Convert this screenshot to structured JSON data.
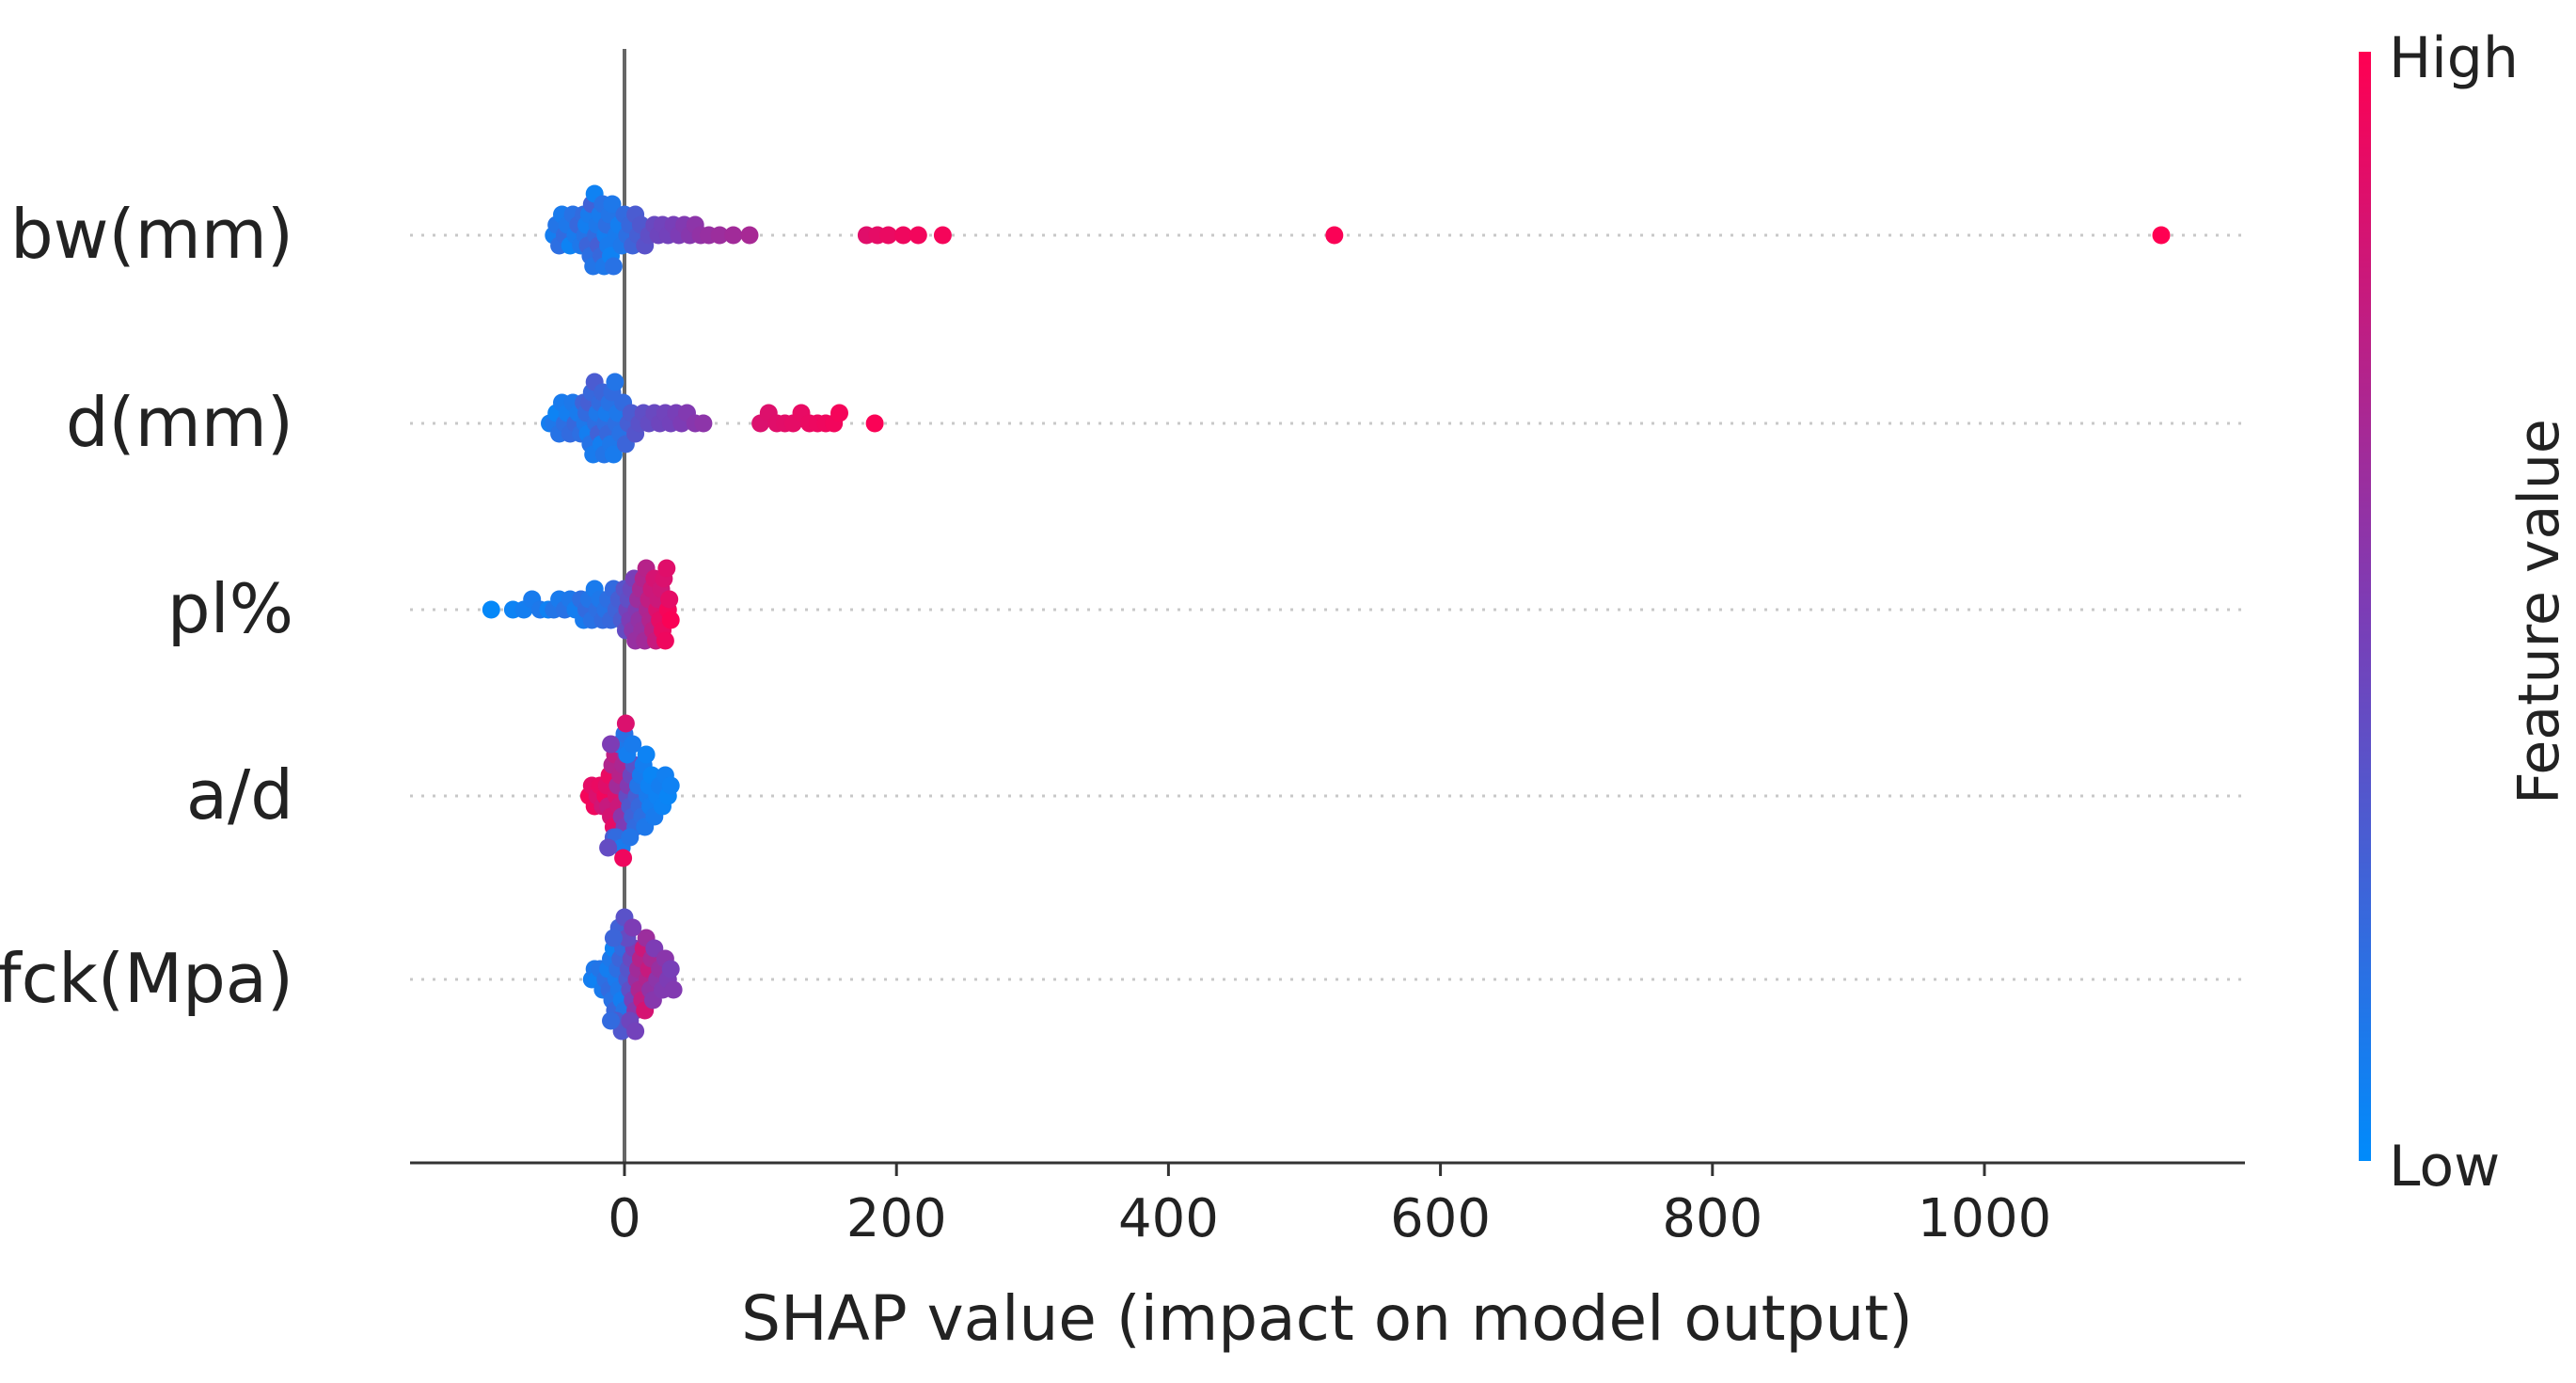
{
  "chart_data": {
    "type": "scatter",
    "subtype": "shap-beeswarm",
    "title": "",
    "xlabel": "SHAP value (impact on model output)",
    "ylabel": "",
    "xlim": [
      -160,
      1200
    ],
    "xticks": [
      0,
      200,
      400,
      600,
      800,
      1000
    ],
    "xtick_labels": [
      "0",
      "200",
      "400",
      "600",
      "800",
      "1000"
    ],
    "zero_line": 0,
    "colorbar": {
      "label": "Feature value",
      "high_label": "High",
      "low_label": "Low",
      "low_color": "#008bfb",
      "mid_color": "#7d3cb5",
      "high_color": "#ff0052"
    },
    "features": [
      {
        "name": "bw(mm)",
        "points": [
          [
            -52,
            0.08
          ],
          [
            -50,
            0.14
          ],
          [
            -48,
            0.18
          ],
          [
            -46,
            0.1
          ],
          [
            -44,
            0.2
          ],
          [
            -42,
            0.12
          ],
          [
            -40,
            0.05
          ],
          [
            -38,
            0.16
          ],
          [
            -36,
            0.1
          ],
          [
            -34,
            0.22
          ],
          [
            -32,
            0.12
          ],
          [
            -30,
            0.2
          ],
          [
            -29,
            0.15
          ],
          [
            -28,
            0.08
          ],
          [
            -27,
            0.24
          ],
          [
            -26,
            0.1
          ],
          [
            -25,
            0.18
          ],
          [
            -24,
            0.26
          ],
          [
            -23,
            0.14
          ],
          [
            -22,
            0.06
          ],
          [
            -21,
            0.2
          ],
          [
            -20,
            0.12
          ],
          [
            -19,
            0.28
          ],
          [
            -18,
            0.1
          ],
          [
            -17,
            0.22
          ],
          [
            -16,
            0.16
          ],
          [
            -15,
            0.12
          ],
          [
            -14,
            0.08
          ],
          [
            -13,
            0.18
          ],
          [
            -12,
            0.1
          ],
          [
            -11,
            0.14
          ],
          [
            -10,
            0.06
          ],
          [
            -9,
            0.12
          ],
          [
            -8,
            0.16
          ],
          [
            -6,
            0.1
          ],
          [
            -4,
            0.08
          ],
          [
            -2,
            0.12
          ],
          [
            0,
            0.2
          ],
          [
            2,
            0.18
          ],
          [
            4,
            0.22
          ],
          [
            6,
            0.25
          ],
          [
            8,
            0.3
          ],
          [
            10,
            0.28
          ],
          [
            12,
            0.32
          ],
          [
            15,
            0.36
          ],
          [
            18,
            0.38
          ],
          [
            22,
            0.42
          ],
          [
            25,
            0.44
          ],
          [
            28,
            0.45
          ],
          [
            32,
            0.46
          ],
          [
            36,
            0.48
          ],
          [
            40,
            0.5
          ],
          [
            44,
            0.52
          ],
          [
            48,
            0.54
          ],
          [
            52,
            0.56
          ],
          [
            56,
            0.58
          ],
          [
            62,
            0.6
          ],
          [
            70,
            0.62
          ],
          [
            80,
            0.64
          ],
          [
            92,
            0.66
          ],
          [
            178,
            0.88
          ],
          [
            186,
            0.9
          ],
          [
            194,
            0.92
          ],
          [
            205,
            0.94
          ],
          [
            216,
            0.95
          ],
          [
            234,
            0.96
          ],
          [
            522,
            0.98
          ],
          [
            1130,
            1.0
          ]
        ]
      },
      {
        "name": "d(mm)",
        "points": [
          [
            -55,
            0.08
          ],
          [
            -52,
            0.12
          ],
          [
            -50,
            0.05
          ],
          [
            -48,
            0.15
          ],
          [
            -46,
            0.1
          ],
          [
            -44,
            0.18
          ],
          [
            -42,
            0.08
          ],
          [
            -40,
            0.2
          ],
          [
            -38,
            0.12
          ],
          [
            -36,
            0.22
          ],
          [
            -34,
            0.1
          ],
          [
            -32,
            0.18
          ],
          [
            -30,
            0.25
          ],
          [
            -29,
            0.12
          ],
          [
            -28,
            0.2
          ],
          [
            -27,
            0.08
          ],
          [
            -26,
            0.28
          ],
          [
            -25,
            0.15
          ],
          [
            -24,
            0.22
          ],
          [
            -23,
            0.1
          ],
          [
            -22,
            0.3
          ],
          [
            -21,
            0.18
          ],
          [
            -20,
            0.12
          ],
          [
            -19,
            0.26
          ],
          [
            -18,
            0.2
          ],
          [
            -17,
            0.08
          ],
          [
            -16,
            0.24
          ],
          [
            -15,
            0.14
          ],
          [
            -14,
            0.18
          ],
          [
            -13,
            0.1
          ],
          [
            -12,
            0.22
          ],
          [
            -11,
            0.16
          ],
          [
            -10,
            0.12
          ],
          [
            -9,
            0.2
          ],
          [
            -8,
            0.1
          ],
          [
            -7,
            0.14
          ],
          [
            -6,
            0.18
          ],
          [
            -5,
            0.12
          ],
          [
            -3,
            0.16
          ],
          [
            -1,
            0.2
          ],
          [
            1,
            0.24
          ],
          [
            3,
            0.28
          ],
          [
            5,
            0.3
          ],
          [
            8,
            0.34
          ],
          [
            11,
            0.36
          ],
          [
            14,
            0.38
          ],
          [
            18,
            0.4
          ],
          [
            22,
            0.42
          ],
          [
            26,
            0.44
          ],
          [
            30,
            0.45
          ],
          [
            34,
            0.46
          ],
          [
            38,
            0.48
          ],
          [
            42,
            0.5
          ],
          [
            46,
            0.52
          ],
          [
            52,
            0.54
          ],
          [
            58,
            0.56
          ],
          [
            100,
            0.86
          ],
          [
            106,
            0.87
          ],
          [
            112,
            0.88
          ],
          [
            118,
            0.89
          ],
          [
            124,
            0.9
          ],
          [
            130,
            0.91
          ],
          [
            136,
            0.92
          ],
          [
            142,
            0.93
          ],
          [
            148,
            0.94
          ],
          [
            154,
            0.95
          ],
          [
            158,
            0.96
          ],
          [
            184,
            0.98
          ]
        ]
      },
      {
        "name": "pl%",
        "points": [
          [
            -98,
            0.02
          ],
          [
            -82,
            0.05
          ],
          [
            -74,
            0.08
          ],
          [
            -68,
            0.1
          ],
          [
            -62,
            0.12
          ],
          [
            -56,
            0.06
          ],
          [
            -52,
            0.14
          ],
          [
            -48,
            0.1
          ],
          [
            -44,
            0.16
          ],
          [
            -40,
            0.12
          ],
          [
            -36,
            0.08
          ],
          [
            -32,
            0.18
          ],
          [
            -30,
            0.1
          ],
          [
            -28,
            0.2
          ],
          [
            -26,
            0.14
          ],
          [
            -24,
            0.16
          ],
          [
            -22,
            0.1
          ],
          [
            -20,
            0.18
          ],
          [
            -18,
            0.12
          ],
          [
            -16,
            0.2
          ],
          [
            -14,
            0.15
          ],
          [
            -12,
            0.18
          ],
          [
            -10,
            0.22
          ],
          [
            -8,
            0.2
          ],
          [
            -6,
            0.25
          ],
          [
            -4,
            0.28
          ],
          [
            -2,
            0.3
          ],
          [
            0,
            0.35
          ],
          [
            1,
            0.4
          ],
          [
            2,
            0.45
          ],
          [
            3,
            0.38
          ],
          [
            4,
            0.5
          ],
          [
            5,
            0.42
          ],
          [
            6,
            0.55
          ],
          [
            7,
            0.48
          ],
          [
            8,
            0.6
          ],
          [
            9,
            0.52
          ],
          [
            10,
            0.62
          ],
          [
            11,
            0.58
          ],
          [
            12,
            0.66
          ],
          [
            13,
            0.6
          ],
          [
            14,
            0.7
          ],
          [
            15,
            0.64
          ],
          [
            16,
            0.72
          ],
          [
            17,
            0.68
          ],
          [
            18,
            0.76
          ],
          [
            19,
            0.7
          ],
          [
            20,
            0.8
          ],
          [
            21,
            0.74
          ],
          [
            22,
            0.84
          ],
          [
            23,
            0.78
          ],
          [
            24,
            0.86
          ],
          [
            25,
            0.8
          ],
          [
            26,
            0.9
          ],
          [
            27,
            0.82
          ],
          [
            28,
            0.92
          ],
          [
            29,
            0.86
          ],
          [
            30,
            0.94
          ],
          [
            31,
            0.88
          ],
          [
            32,
            0.96
          ],
          [
            33,
            0.9
          ],
          [
            34,
            0.98
          ]
        ]
      },
      {
        "name": "a/d",
        "points": [
          [
            -26,
            0.96
          ],
          [
            -24,
            0.9
          ],
          [
            -22,
            0.94
          ],
          [
            -20,
            0.86
          ],
          [
            -18,
            0.92
          ],
          [
            -16,
            0.82
          ],
          [
            -14,
            0.95
          ],
          [
            -13,
            0.88
          ],
          [
            -12,
            0.78
          ],
          [
            -11,
            0.92
          ],
          [
            -10,
            0.84
          ],
          [
            -9,
            0.7
          ],
          [
            -8,
            0.9
          ],
          [
            -7,
            0.76
          ],
          [
            -6,
            0.86
          ],
          [
            -5,
            0.64
          ],
          [
            -4,
            0.8
          ],
          [
            -3,
            0.72
          ],
          [
            -2,
            0.56
          ],
          [
            -1,
            0.68
          ],
          [
            0,
            0.5
          ],
          [
            1,
            0.62
          ],
          [
            2,
            0.4
          ],
          [
            3,
            0.52
          ],
          [
            4,
            0.32
          ],
          [
            5,
            0.44
          ],
          [
            6,
            0.26
          ],
          [
            7,
            0.36
          ],
          [
            8,
            0.2
          ],
          [
            9,
            0.28
          ],
          [
            10,
            0.14
          ],
          [
            11,
            0.22
          ],
          [
            12,
            0.1
          ],
          [
            13,
            0.18
          ],
          [
            14,
            0.08
          ],
          [
            15,
            0.12
          ],
          [
            16,
            0.05
          ],
          [
            17,
            0.1
          ],
          [
            18,
            0.06
          ],
          [
            19,
            0.08
          ],
          [
            20,
            0.04
          ],
          [
            22,
            0.1
          ],
          [
            24,
            0.06
          ],
          [
            26,
            0.08
          ],
          [
            28,
            0.05
          ],
          [
            30,
            0.07
          ],
          [
            32,
            0.04
          ],
          [
            34,
            0.06
          ],
          [
            -8,
            0.3
          ],
          [
            -6,
            0.2
          ],
          [
            -4,
            0.12
          ],
          [
            -2,
            0.1
          ],
          [
            0,
            0.16
          ],
          [
            2,
            0.08
          ],
          [
            4,
            0.14
          ],
          [
            6,
            0.1
          ],
          [
            -10,
            0.5
          ],
          [
            -12,
            0.4
          ],
          [
            -1,
            0.94
          ],
          [
            1,
            0.86
          ]
        ]
      },
      {
        "name": "fck(Mpa)",
        "points": [
          [
            -24,
            0.08
          ],
          [
            -22,
            0.12
          ],
          [
            -20,
            0.06
          ],
          [
            -18,
            0.14
          ],
          [
            -16,
            0.1
          ],
          [
            -14,
            0.18
          ],
          [
            -12,
            0.08
          ],
          [
            -11,
            0.2
          ],
          [
            -10,
            0.12
          ],
          [
            -9,
            0.16
          ],
          [
            -8,
            0.06
          ],
          [
            -7,
            0.22
          ],
          [
            -6,
            0.1
          ],
          [
            -5,
            0.18
          ],
          [
            -4,
            0.12
          ],
          [
            -3,
            0.24
          ],
          [
            -2,
            0.08
          ],
          [
            -1,
            0.2
          ],
          [
            0,
            0.14
          ],
          [
            1,
            0.28
          ],
          [
            2,
            0.3
          ],
          [
            3,
            0.34
          ],
          [
            4,
            0.38
          ],
          [
            5,
            0.42
          ],
          [
            6,
            0.46
          ],
          [
            7,
            0.5
          ],
          [
            8,
            0.55
          ],
          [
            9,
            0.6
          ],
          [
            10,
            0.64
          ],
          [
            11,
            0.68
          ],
          [
            12,
            0.72
          ],
          [
            13,
            0.76
          ],
          [
            14,
            0.8
          ],
          [
            15,
            0.84
          ],
          [
            16,
            0.62
          ],
          [
            17,
            0.7
          ],
          [
            18,
            0.78
          ],
          [
            19,
            0.58
          ],
          [
            20,
            0.66
          ],
          [
            21,
            0.54
          ],
          [
            22,
            0.5
          ],
          [
            24,
            0.56
          ],
          [
            26,
            0.6
          ],
          [
            28,
            0.52
          ],
          [
            30,
            0.55
          ],
          [
            32,
            0.5
          ],
          [
            34,
            0.48
          ],
          [
            36,
            0.52
          ],
          [
            -6,
            0.3
          ],
          [
            -4,
            0.26
          ],
          [
            -2,
            0.32
          ],
          [
            0,
            0.36
          ],
          [
            2,
            0.4
          ],
          [
            -8,
            0.24
          ],
          [
            4,
            0.44
          ],
          [
            6,
            0.5
          ],
          [
            -10,
            0.2
          ],
          [
            8,
            0.46
          ]
        ]
      }
    ]
  }
}
